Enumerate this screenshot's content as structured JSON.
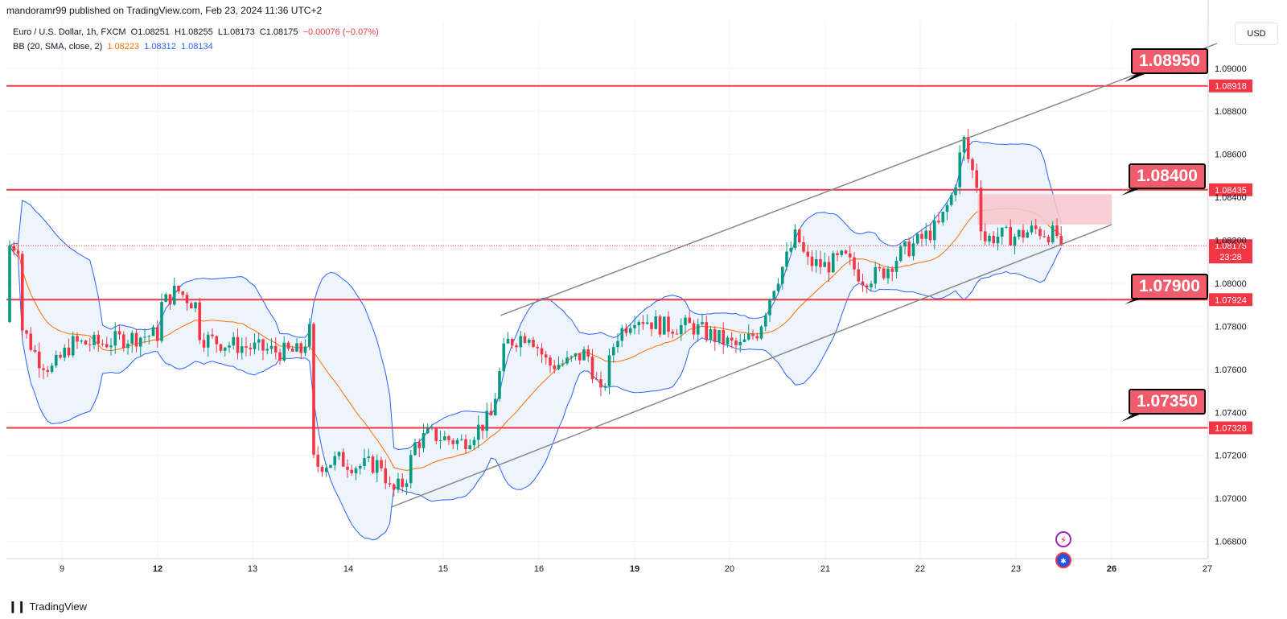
{
  "header": {
    "published_by": "mandoramr99 published on TradingView.com, Feb 23, 2024 11:36 UTC+2"
  },
  "legend": {
    "symbol": "Euro / U.S. Dollar, 1h, FXCM",
    "open": "O1.08251",
    "high": "H1.08255",
    "low": "L1.08173",
    "close": "C1.08175",
    "change": "−0.00076 (−0.07%)",
    "bb_label": "BB (20, SMA, close, 2)",
    "bb_basis": "1.08223",
    "bb_upper": "1.08312",
    "bb_lower": "1.08134"
  },
  "currency_button": "USD",
  "callouts": [
    "1.08950",
    "1.08400",
    "1.07900",
    "1.07350"
  ],
  "current_price": {
    "price": "1.08175",
    "countdown": "23:28"
  },
  "footer": {
    "brand": "TradingView"
  },
  "colors": {
    "up": "#089981",
    "down": "#f23645",
    "level": "#f23645",
    "bb_band": "#2962ff",
    "bb_basis": "#ff6d00",
    "bb_fill": "#eef4fb",
    "channel": "#888888",
    "zone": "#f8c6cc"
  },
  "chart_data": {
    "type": "candlestick",
    "symbol": "EURUSD",
    "timeframe": "1h",
    "ylim": [
      1.0672,
      1.0922
    ],
    "y_ticks": [
      "1.09000",
      "1.08800",
      "1.08600",
      "1.08400",
      "1.08200",
      "1.08000",
      "1.07800",
      "1.07600",
      "1.07400",
      "1.07200",
      "1.07000",
      "1.06800"
    ],
    "x_ticks": [
      "9",
      "12",
      "13",
      "14",
      "15",
      "16",
      "19",
      "20",
      "21",
      "22",
      "23",
      "26",
      "27"
    ],
    "x_tick_bold": [
      "12",
      "19",
      "26"
    ],
    "horizontal_levels": [
      {
        "price": 1.08918,
        "label": "1.08918"
      },
      {
        "price": 1.08435,
        "label": "1.08435"
      },
      {
        "price": 1.07924,
        "label": "1.07924"
      },
      {
        "price": 1.07328,
        "label": "1.07328"
      }
    ],
    "last_price": 1.08175,
    "channel_upper": [
      [
        15.6,
        1.07851
      ],
      [
        27.1,
        1.09115
      ]
    ],
    "channel_lower": [
      [
        14.45,
        1.06959
      ],
      [
        26.0,
        1.08273
      ]
    ],
    "resistance_zone": {
      "x0": 22.6,
      "x1": 25.95,
      "y0": 1.08273,
      "y1": 1.08414
    },
    "price_path": [
      [
        8.55,
        1.0782
      ],
      [
        8.75,
        1.0765
      ],
      [
        8.9,
        1.076
      ],
      [
        9.1,
        1.0772
      ],
      [
        9.4,
        1.0772
      ],
      [
        9.6,
        1.0774
      ],
      [
        12.0,
        1.0788
      ],
      [
        12.2,
        1.0797
      ],
      [
        12.4,
        1.079
      ],
      [
        12.45,
        1.0775
      ],
      [
        12.7,
        1.0772
      ],
      [
        13.0,
        1.077
      ],
      [
        13.3,
        1.0768
      ],
      [
        13.5,
        1.0768
      ],
      [
        13.6,
        1.0778
      ],
      [
        13.62,
        1.075
      ],
      [
        13.64,
        1.0715
      ],
      [
        13.9,
        1.0718
      ],
      [
        14.1,
        1.0715
      ],
      [
        14.35,
        1.0716
      ],
      [
        14.45,
        1.0702
      ],
      [
        14.6,
        1.0708
      ],
      [
        14.7,
        1.0725
      ],
      [
        14.85,
        1.073
      ],
      [
        15.0,
        1.0728
      ],
      [
        15.2,
        1.0726
      ],
      [
        15.5,
        1.0738
      ],
      [
        15.65,
        1.0772
      ],
      [
        15.9,
        1.0777
      ],
      [
        16.1,
        1.0762
      ],
      [
        16.3,
        1.0763
      ],
      [
        16.5,
        1.0768
      ],
      [
        16.65,
        1.0747
      ],
      [
        16.8,
        1.0775
      ],
      [
        17.0,
        1.0785
      ],
      [
        19.0,
        1.0785
      ],
      [
        19.3,
        1.078
      ],
      [
        19.6,
        1.078
      ],
      [
        19.8,
        1.0776
      ],
      [
        20.1,
        1.077
      ],
      [
        20.3,
        1.0778
      ],
      [
        20.45,
        1.0798
      ],
      [
        20.6,
        1.0812
      ],
      [
        20.7,
        1.0823
      ],
      [
        20.8,
        1.081
      ],
      [
        21.0,
        1.0808
      ],
      [
        21.2,
        1.0812
      ],
      [
        21.4,
        1.0802
      ],
      [
        21.6,
        1.0805
      ],
      [
        21.8,
        1.0814
      ],
      [
        22.0,
        1.082
      ],
      [
        22.2,
        1.0827
      ],
      [
        22.35,
        1.0843
      ],
      [
        22.45,
        1.0868
      ],
      [
        22.5,
        1.0858
      ],
      [
        22.6,
        1.0845
      ],
      [
        22.65,
        1.082
      ],
      [
        22.8,
        1.0822
      ],
      [
        23.0,
        1.0822
      ],
      [
        23.2,
        1.0825
      ],
      [
        23.45,
        1.0822
      ],
      [
        23.5,
        1.08175
      ]
    ]
  }
}
